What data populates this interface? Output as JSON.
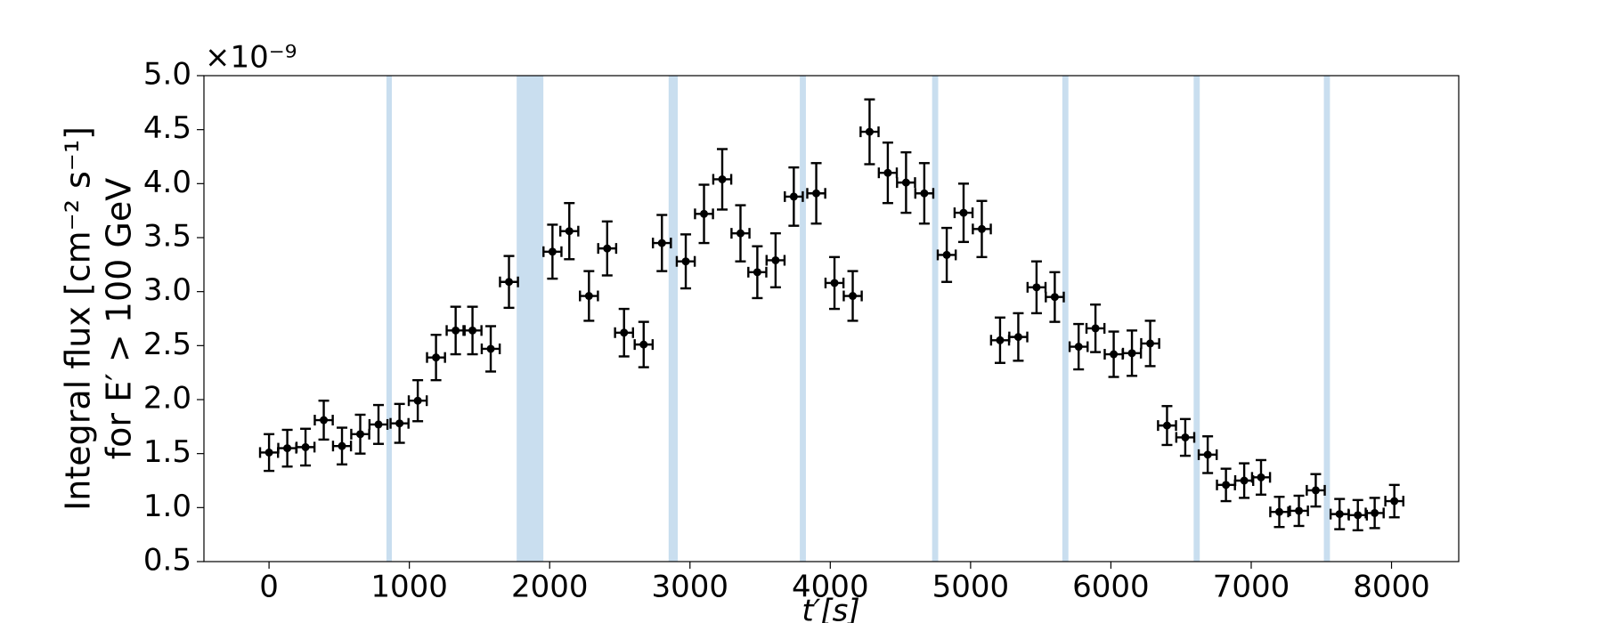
{
  "chart_data": {
    "type": "errorbar",
    "y_offset_label": "×10⁻⁹",
    "ylabel": [
      "Integral flux [cm⁻² s⁻¹]",
      "for E′ > 100 GeV"
    ],
    "xlabel": "t′[s]",
    "x": [
      0,
      130,
      260,
      390,
      520,
      650,
      780,
      930,
      1060,
      1190,
      1330,
      1450,
      1580,
      1710,
      2020,
      2140,
      2280,
      2410,
      2530,
      2670,
      2800,
      2970,
      3100,
      3230,
      3360,
      3480,
      3610,
      3740,
      3900,
      4030,
      4160,
      4280,
      4410,
      4540,
      4670,
      4830,
      4950,
      5080,
      5210,
      5340,
      5470,
      5600,
      5770,
      5890,
      6020,
      6150,
      6280,
      6400,
      6530,
      6690,
      6820,
      6950,
      7070,
      7200,
      7340,
      7460,
      7630,
      7760,
      7880,
      8020
    ],
    "values": [
      1.51,
      1.55,
      1.56,
      1.81,
      1.57,
      1.68,
      1.77,
      1.78,
      1.99,
      2.39,
      2.64,
      2.64,
      2.47,
      3.09,
      3.37,
      3.56,
      2.96,
      3.4,
      2.62,
      2.51,
      3.45,
      3.28,
      3.72,
      4.04,
      3.54,
      3.18,
      3.29,
      3.88,
      3.91,
      3.08,
      2.96,
      4.48,
      4.1,
      4.01,
      3.91,
      3.34,
      3.73,
      3.58,
      2.55,
      2.58,
      3.04,
      2.95,
      2.49,
      2.66,
      2.42,
      2.43,
      2.52,
      1.76,
      1.65,
      1.49,
      1.21,
      1.25,
      1.28,
      0.96,
      0.97,
      1.16,
      0.94,
      0.93,
      0.95,
      1.06
    ],
    "yerr": [
      0.17,
      0.17,
      0.17,
      0.18,
      0.17,
      0.18,
      0.18,
      0.18,
      0.19,
      0.21,
      0.22,
      0.22,
      0.21,
      0.24,
      0.25,
      0.26,
      0.23,
      0.25,
      0.22,
      0.21,
      0.26,
      0.25,
      0.27,
      0.28,
      0.26,
      0.24,
      0.25,
      0.27,
      0.28,
      0.24,
      0.23,
      0.3,
      0.28,
      0.28,
      0.28,
      0.25,
      0.27,
      0.26,
      0.21,
      0.22,
      0.24,
      0.23,
      0.21,
      0.22,
      0.21,
      0.21,
      0.21,
      0.18,
      0.17,
      0.17,
      0.15,
      0.16,
      0.16,
      0.14,
      0.14,
      0.15,
      0.14,
      0.14,
      0.14,
      0.15
    ],
    "xerr": 64,
    "color": "#000000",
    "spans": [
      [
        840,
        872
      ],
      [
        1768,
        1952
      ],
      [
        2851,
        2910
      ],
      [
        3786,
        3823
      ],
      [
        4729,
        4766
      ],
      [
        5657,
        5694
      ],
      [
        6593,
        6630
      ],
      [
        7521,
        7558
      ]
    ],
    "span_color": "#c9deef",
    "xlim": [
      -464,
      8479
    ],
    "ylim": [
      0.5,
      5.0
    ],
    "xticks": [
      0,
      1000,
      2000,
      3000,
      4000,
      5000,
      6000,
      7000,
      8000
    ],
    "yticks": [
      {
        "value": 0.5,
        "label": "0.5"
      },
      {
        "value": 1.0,
        "label": "1.0"
      },
      {
        "value": 1.5,
        "label": "1.5"
      },
      {
        "value": 2.0,
        "label": "2.0"
      },
      {
        "value": 2.5,
        "label": "2.5"
      },
      {
        "value": 3.0,
        "label": "3.0"
      },
      {
        "value": 3.5,
        "label": "3.5"
      },
      {
        "value": 4.0,
        "label": "4.0"
      },
      {
        "value": 4.5,
        "label": "4.5"
      },
      {
        "value": 5.0,
        "label": "5.0"
      }
    ]
  }
}
